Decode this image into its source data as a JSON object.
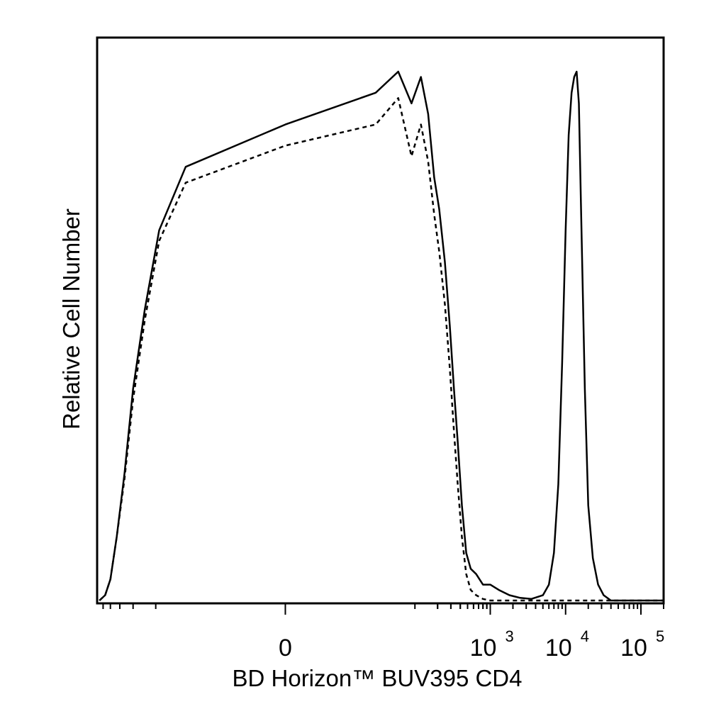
{
  "chart_data": {
    "type": "line",
    "title": "",
    "xlabel": "BD Horizon™ BUV395 CD4",
    "ylabel": "Relative Cell Number",
    "x_scale": "biexponential",
    "xlim": [
      -600,
      200000
    ],
    "ylim": [
      0,
      100
    ],
    "grid": false,
    "x_ticks": [
      {
        "base": "0",
        "exp": "",
        "value": 0
      },
      {
        "base": "10",
        "exp": "3",
        "value": 1000
      },
      {
        "base": "10",
        "exp": "4",
        "value": 10000
      },
      {
        "base": "10",
        "exp": "5",
        "value": 100000
      }
    ],
    "series": [
      {
        "style": "solid",
        "x": [
          -560,
          -470,
          -400,
          -330,
          -260,
          -200,
          -140,
          -90,
          -40,
          0,
          30,
          60,
          90,
          120,
          150,
          180,
          210,
          250,
          290,
          330,
          370,
          420,
          480,
          550,
          650,
          800,
          1000,
          1300,
          1800,
          2500,
          3500,
          5000,
          6000,
          7000,
          8000,
          9000,
          10000,
          11000,
          12000,
          13000,
          14000,
          15000,
          16000,
          18000,
          20000,
          23000,
          27000,
          32000,
          40000,
          100000,
          200000
        ],
        "y": [
          0,
          1,
          4,
          12,
          24,
          40,
          55,
          70,
          82,
          90,
          96,
          100,
          94,
          99,
          92,
          80,
          74,
          64,
          52,
          40,
          30,
          18,
          9,
          6,
          5,
          3,
          3,
          2,
          1,
          0.5,
          0.3,
          1,
          3,
          9,
          22,
          45,
          70,
          88,
          96,
          99,
          100,
          94,
          75,
          40,
          18,
          8,
          3,
          1,
          0,
          0,
          0
        ]
      },
      {
        "style": "dashed",
        "x": [
          -560,
          -470,
          -400,
          -330,
          -260,
          -200,
          -140,
          -90,
          -40,
          0,
          30,
          60,
          90,
          120,
          150,
          180,
          210,
          250,
          290,
          330,
          370,
          420,
          480,
          550,
          650,
          800,
          1000,
          1300,
          1800,
          2500,
          5000,
          100000,
          200000
        ],
        "y": [
          0,
          1,
          4,
          12,
          23,
          38,
          53,
          68,
          79,
          86,
          90,
          95,
          84,
          90,
          83,
          73,
          66,
          56,
          44,
          32,
          22,
          12,
          5,
          2,
          1,
          0.3,
          0,
          0,
          0,
          0,
          0,
          0,
          0
        ]
      }
    ]
  }
}
